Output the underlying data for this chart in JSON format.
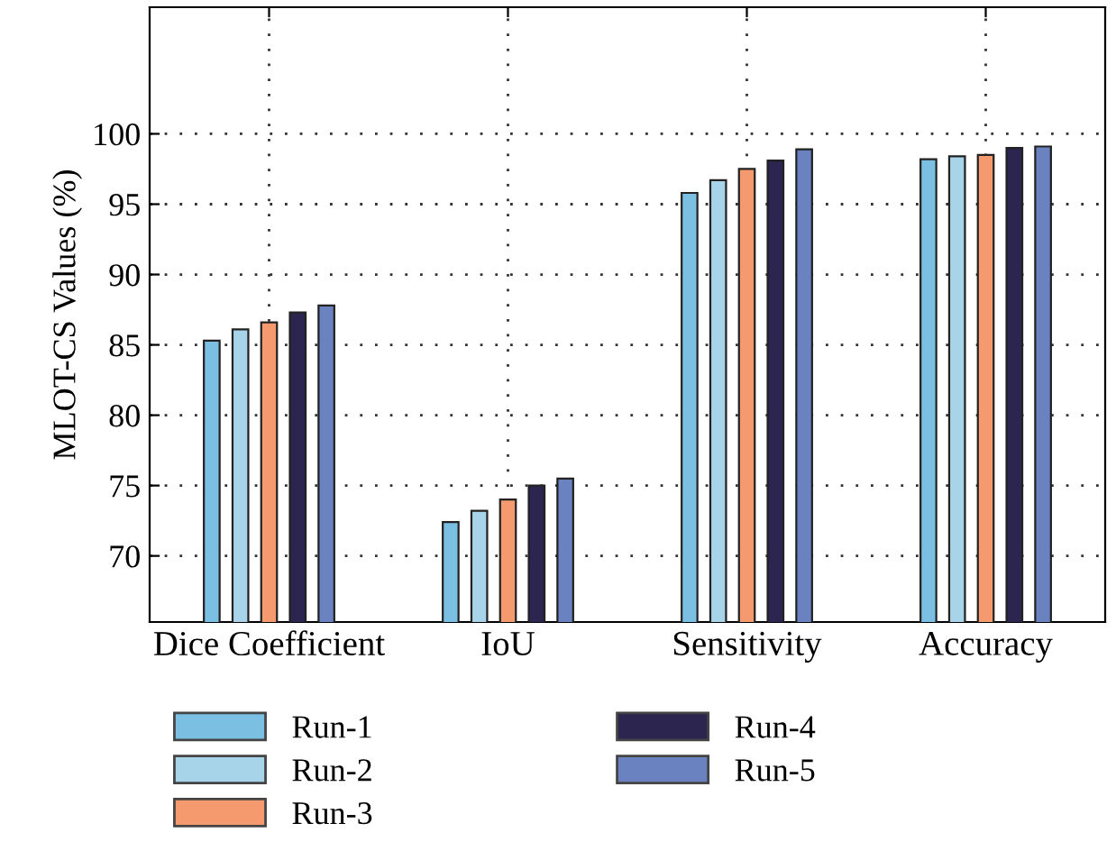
{
  "chart_data": {
    "type": "bar",
    "ylabel": "MLOT-CS Values (%)",
    "categories": [
      "Dice Coefficient",
      "IoU",
      "Sensitivity",
      "Accuracy"
    ],
    "series": [
      {
        "name": "Run-1",
        "color": "#7bbfe3",
        "values": [
          85.3,
          72.4,
          95.8,
          98.2
        ]
      },
      {
        "name": "Run-2",
        "color": "#a8d4ea",
        "values": [
          86.1,
          73.2,
          96.7,
          98.4
        ]
      },
      {
        "name": "Run-3",
        "color": "#f59a6e",
        "values": [
          86.6,
          74.0,
          97.5,
          98.5
        ]
      },
      {
        "name": "Run-4",
        "color": "#2b2550",
        "values": [
          87.3,
          75.0,
          98.1,
          99.0
        ]
      },
      {
        "name": "Run-5",
        "color": "#6a82bf",
        "values": [
          87.8,
          75.5,
          98.9,
          99.1
        ]
      }
    ],
    "ylim": [
      65.3,
      109
    ],
    "yticks": [
      70,
      75,
      80,
      85,
      90,
      95,
      100
    ],
    "grid": true,
    "legend": "bottom"
  }
}
